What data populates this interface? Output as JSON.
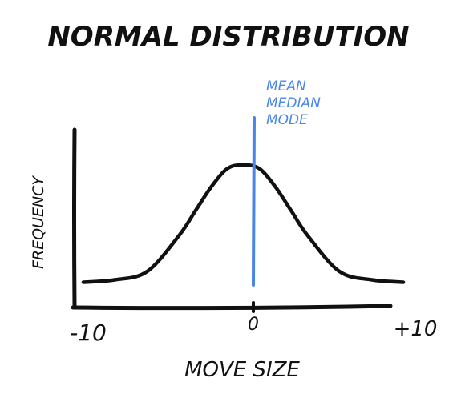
{
  "chart_data": {
    "type": "line",
    "title": "NORMAL DISTRIBUTION",
    "xlabel": "MOVE SIZE",
    "ylabel": "FREQUENCY",
    "xlim": [
      -10,
      10
    ],
    "x_ticks": [
      "-10",
      "0",
      "+10"
    ],
    "curve": "normal",
    "series": [
      {
        "x": [
          -10,
          -8,
          -6,
          -4,
          -3,
          -2,
          -1,
          0,
          1,
          2,
          3,
          4,
          6,
          8,
          10
        ],
        "y": [
          0.03,
          0.05,
          0.12,
          0.42,
          0.62,
          0.82,
          0.97,
          1.0,
          0.97,
          0.82,
          0.62,
          0.42,
          0.12,
          0.05,
          0.03
        ]
      }
    ],
    "annotation": {
      "x": 0,
      "lines": [
        "MEAN",
        "MEDIAN",
        "MODE"
      ]
    },
    "grid": false,
    "colors": {
      "curve": "#111111",
      "axes": "#111111",
      "marker": "#4a86e8",
      "text": "#111111"
    }
  }
}
